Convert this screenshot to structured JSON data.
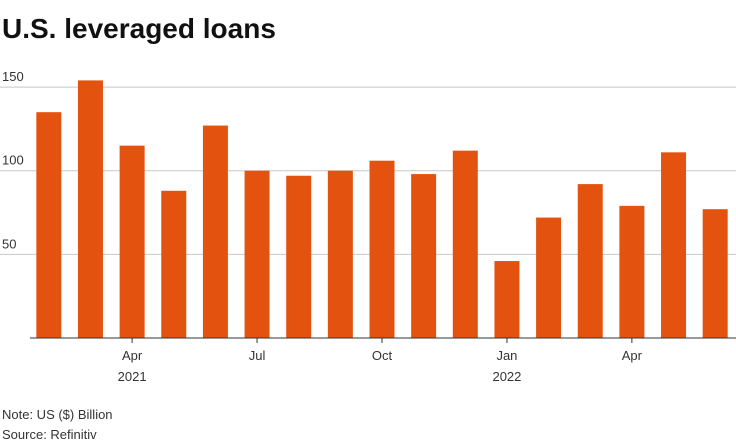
{
  "chart_data": {
    "type": "bar",
    "title": "U.S. leveraged loans",
    "categories": [
      null,
      null,
      "Apr",
      null,
      null,
      "Jul",
      null,
      null,
      "Oct",
      null,
      null,
      "Jan",
      null,
      null,
      "Apr",
      null,
      null
    ],
    "category_years": [
      null,
      null,
      "2021",
      null,
      null,
      null,
      null,
      null,
      null,
      null,
      null,
      "2022",
      null,
      null,
      null,
      null,
      null
    ],
    "values": [
      135,
      154,
      115,
      88,
      127,
      100,
      97,
      100,
      106,
      98,
      112,
      46,
      72,
      92,
      79,
      111,
      77
    ],
    "color": "#e3530f",
    "ylim": [
      0,
      165
    ],
    "yticks": [
      50,
      100,
      150
    ],
    "grid": true,
    "note": "Note: US ($) Billion",
    "source": "Source: Refinitiv"
  }
}
